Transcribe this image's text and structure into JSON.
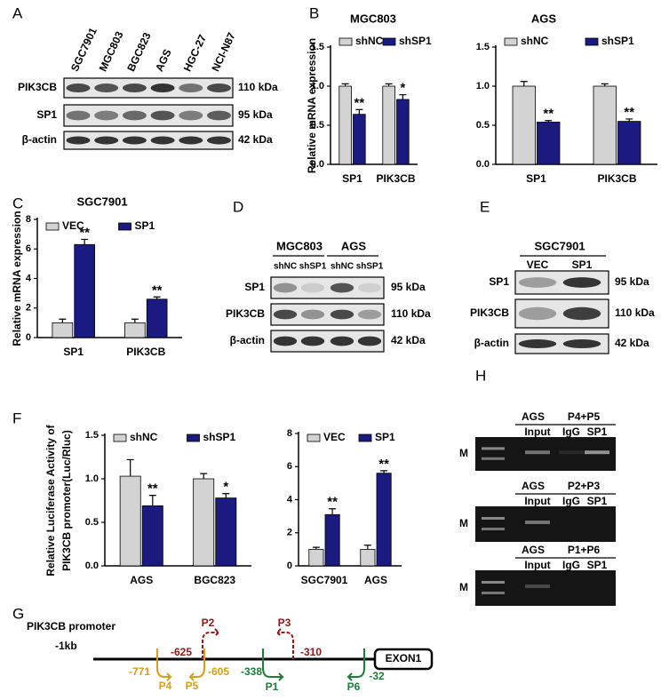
{
  "panel_labels": [
    "A",
    "B",
    "C",
    "D",
    "E",
    "F",
    "G",
    "H"
  ],
  "chart_data": [
    {
      "type": "bar",
      "title": "MGC803",
      "ylabel": [
        "Relative mRNA expression"
      ],
      "categories": [
        "SP1",
        "PIK3CB"
      ],
      "series": [
        {
          "name": "shNC",
          "color": "#d3d3d3",
          "values": [
            1.0,
            1.0
          ],
          "errors": [
            0.03,
            0.03
          ]
        },
        {
          "name": "shSP1",
          "color": "#1a1a80",
          "values": [
            0.64,
            0.83
          ],
          "errors": [
            0.06,
            0.06
          ]
        }
      ],
      "annotations": [
        "**",
        "*"
      ],
      "ylim": [
        0,
        1.5
      ],
      "yticks": [
        {
          "value": 0,
          "label": "0.0"
        },
        {
          "value": 0.5,
          "label": "0.5"
        },
        {
          "value": 1,
          "label": "1.0"
        },
        {
          "value": 1.5,
          "label": "1.5"
        }
      ]
    },
    {
      "type": "bar",
      "title": "AGS",
      "categories": [
        "SP1",
        "PIK3CB"
      ],
      "series": [
        {
          "name": "shNC",
          "color": "#d3d3d3",
          "values": [
            1.0,
            1.0
          ],
          "errors": [
            0.06,
            0.03
          ]
        },
        {
          "name": "shSP1",
          "color": "#1a1a80",
          "values": [
            0.54,
            0.55
          ],
          "errors": [
            0.02,
            0.03
          ]
        }
      ],
      "annotations": [
        "**",
        "**"
      ],
      "ylim": [
        0,
        1.5
      ],
      "yticks": [
        {
          "value": 0,
          "label": "0.0"
        },
        {
          "value": 0.5,
          "label": "0.5"
        },
        {
          "value": 1,
          "label": "1.0"
        },
        {
          "value": 1.5,
          "label": "1.5"
        }
      ]
    },
    {
      "type": "bar",
      "title": "SGC7901",
      "ylabel": [
        "Relative mRNA expression"
      ],
      "categories": [
        "SP1",
        "PIK3CB"
      ],
      "series": [
        {
          "name": "VEC",
          "color": "#d3d3d3",
          "values": [
            1.0,
            1.0
          ],
          "errors": [
            0.25,
            0.25
          ]
        },
        {
          "name": "SP1",
          "color": "#1a1a80",
          "values": [
            6.3,
            2.6
          ],
          "errors": [
            0.35,
            0.15
          ]
        }
      ],
      "annotations": [
        "**",
        "**"
      ],
      "ylim": [
        0,
        8
      ],
      "yticks": [
        0,
        2,
        4,
        6,
        8
      ]
    },
    {
      "type": "bar",
      "ylabel": [
        "Relative Luciferase Activity of",
        "PIK3CB promoter(Luc/Rluc)"
      ],
      "categories": [
        "AGS",
        "BGC823"
      ],
      "series": [
        {
          "name": "shNC",
          "color": "#d3d3d3",
          "values": [
            1.03,
            1.0
          ],
          "errors": [
            0.19,
            0.06
          ]
        },
        {
          "name": "shSP1",
          "color": "#1a1a80",
          "values": [
            0.69,
            0.78
          ],
          "errors": [
            0.12,
            0.05
          ]
        }
      ],
      "annotations": [
        "**",
        "*"
      ],
      "ylim": [
        0,
        1.5
      ],
      "yticks": [
        {
          "value": 0,
          "label": "0.0"
        },
        {
          "value": 0.5,
          "label": "0.5"
        },
        {
          "value": 1,
          "label": "1.0"
        },
        {
          "value": 1.5,
          "label": "1.5"
        }
      ]
    },
    {
      "type": "bar",
      "categories": [
        "SGC7901",
        "AGS"
      ],
      "series": [
        {
          "name": "VEC",
          "color": "#d3d3d3",
          "values": [
            1.0,
            1.0
          ],
          "errors": [
            0.12,
            0.25
          ]
        },
        {
          "name": "SP1",
          "color": "#1a1a80",
          "values": [
            3.1,
            5.6
          ],
          "errors": [
            0.35,
            0.15
          ]
        }
      ],
      "annotations": [
        "**",
        "**"
      ],
      "ylim": [
        0,
        8
      ],
      "yticks": [
        0,
        2,
        4,
        6,
        8
      ]
    }
  ],
  "blot_a": {
    "lanes": [
      "SGC7901",
      "MGC803",
      "BGC823",
      "AGS",
      "HGC-27",
      "NCI-N87"
    ],
    "rows": [
      {
        "protein": "PIK3CB",
        "size": "110 kDa"
      },
      {
        "protein": "SP1",
        "size": "95 kDa"
      },
      {
        "protein": "β-actin",
        "size": "42 kDa"
      }
    ]
  },
  "blot_d": {
    "groups": [
      "MGC803",
      "AGS"
    ],
    "lanes": [
      "shNC",
      "shSP1",
      "shNC",
      "shSP1"
    ],
    "rows": [
      {
        "protein": "SP1",
        "size": "95 kDa"
      },
      {
        "protein": "PIK3CB",
        "size": "110 kDa"
      },
      {
        "protein": "β-actin",
        "size": "42 kDa"
      }
    ]
  },
  "blot_e": {
    "group": "SGC7901",
    "lanes": [
      "VEC",
      "SP1"
    ],
    "rows": [
      {
        "protein": "SP1",
        "size": "95 kDa"
      },
      {
        "protein": "PIK3CB",
        "size": "110 kDa"
      },
      {
        "protein": "β-actin",
        "size": "42 kDa"
      }
    ]
  },
  "gel_h": {
    "gels": [
      {
        "marker": "M",
        "cell": "AGS",
        "primers": "P4+P5",
        "lanes": [
          "Input",
          "IgG",
          "SP1"
        ]
      },
      {
        "marker": "M",
        "cell": "AGS",
        "primers": "P2+P3",
        "lanes": [
          "Input",
          "IgG",
          "SP1"
        ]
      },
      {
        "marker": "M",
        "cell": "AGS",
        "primers": "P1+P6",
        "lanes": [
          "Input",
          "IgG",
          "SP1"
        ]
      }
    ]
  },
  "diagram_g": {
    "title": "PIK3CB promoter",
    "start": "-1kb",
    "exon": "EXON1",
    "primers": [
      "P4",
      "P5",
      "P2",
      "P3",
      "P1",
      "P6"
    ],
    "positions": [
      "-771",
      "-625",
      "-605",
      "-310",
      "-338",
      "-32"
    ]
  }
}
